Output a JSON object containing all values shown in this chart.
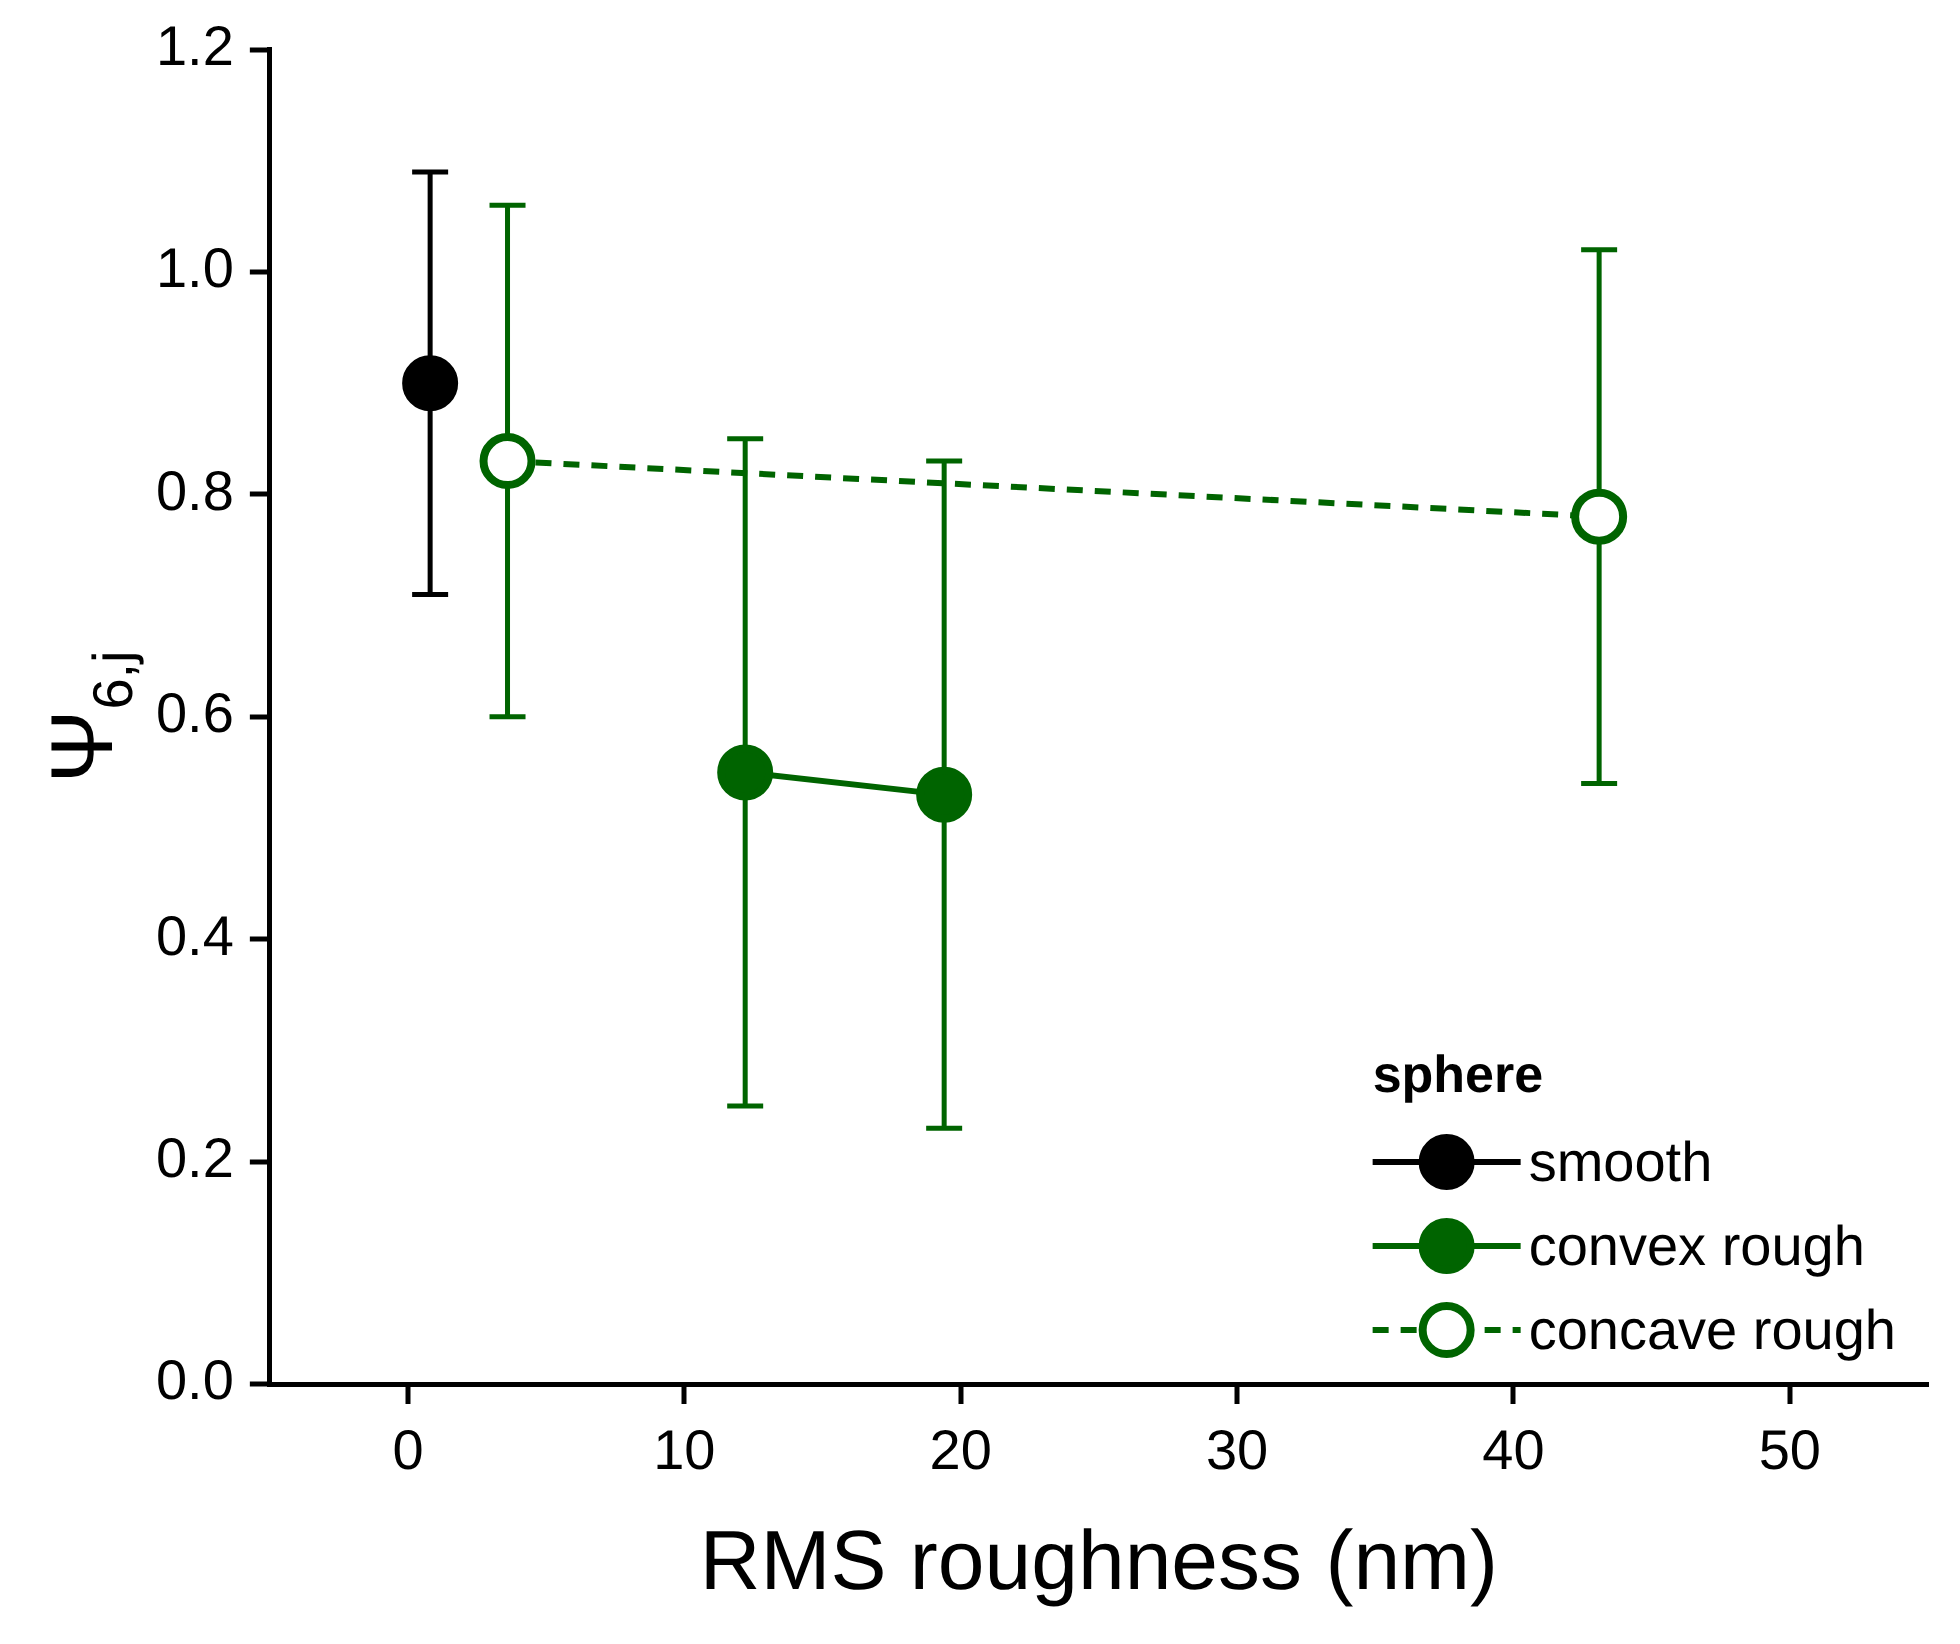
{
  "chart_data": {
    "type": "line",
    "xlabel": "RMS roughness (nm)",
    "ylabel": "Ψ$_{6,j}$",
    "legend_title": "sphere",
    "legend": "bottom right",
    "marker": "circle",
    "xlim": [
      -5,
      55
    ],
    "xticks": [
      0,
      10,
      20,
      30,
      40,
      50
    ],
    "ylim": [
      0,
      1.2
    ],
    "yticks": [
      {
        "value": 0,
        "label": "0.0"
      },
      0.2,
      0.4,
      0.6,
      0.8,
      {
        "value": 1,
        "label": "1.0"
      },
      1.2
    ],
    "series": [
      {
        "name": "smooth",
        "color": "#000000",
        "line_style": "solid",
        "x": [
          0.8
        ],
        "values": [
          0.9
        ],
        "errors": [
          [
            0.71,
            1.09
          ]
        ]
      },
      {
        "name": "convex rough",
        "color": "#006400",
        "line_style": "solid",
        "x": [
          12.2,
          19.4
        ],
        "values": [
          0.55,
          0.53
        ],
        "errors": [
          [
            0.25,
            0.85
          ],
          [
            0.23,
            0.83
          ]
        ]
      },
      {
        "name": "concave rough",
        "color": "#006400",
        "line_style": "dashed",
        "colors": [
          "#ffffff",
          "#ffffff"
        ],
        "x": [
          3.6,
          43.1
        ],
        "values": [
          0.83,
          0.78
        ],
        "errors": [
          [
            0.6,
            1.06
          ],
          [
            0.54,
            1.02
          ]
        ]
      }
    ]
  }
}
